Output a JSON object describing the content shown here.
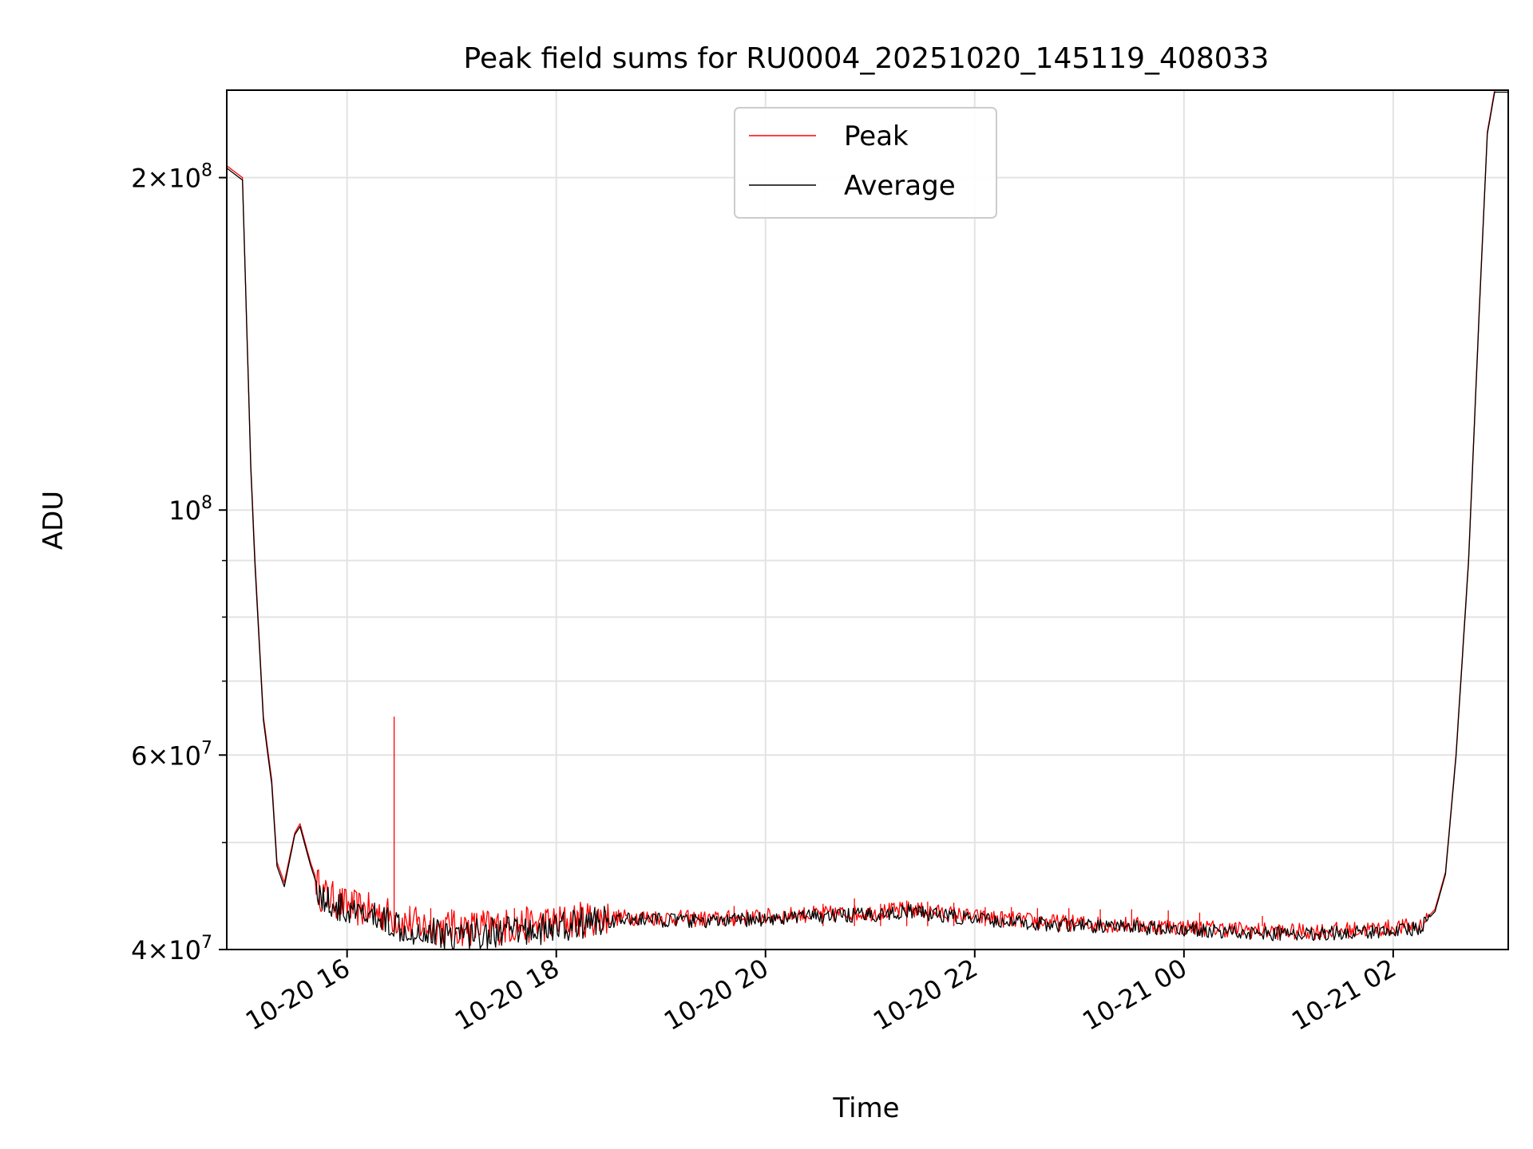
{
  "chart_data": {
    "type": "line",
    "title": "Peak field sums for RU0004_20251020_145119_408033",
    "xlabel": "Time",
    "ylabel": "ADU",
    "yscale": "log",
    "ylim": [
      40000000,
      240000000
    ],
    "xlim_hours": [
      14.85,
      27.1
    ],
    "grid": true,
    "legend_position": "top-center",
    "x_ticks": [
      {
        "hour": 16,
        "label": "10-20 16"
      },
      {
        "hour": 18,
        "label": "10-20 18"
      },
      {
        "hour": 20,
        "label": "10-20 20"
      },
      {
        "hour": 22,
        "label": "10-20 22"
      },
      {
        "hour": 24,
        "label": "10-21 00"
      },
      {
        "hour": 26,
        "label": "10-21 02"
      }
    ],
    "y_major_ticks": [
      {
        "value": 40000000,
        "base": "4",
        "exp": "7"
      },
      {
        "value": 60000000,
        "base": "6",
        "exp": "7"
      },
      {
        "value": 100000000,
        "base": "10",
        "exp": "8"
      },
      {
        "value": 200000000,
        "base": "2",
        "exp": "8"
      }
    ],
    "y_minor_ticks": [
      50000000,
      70000000,
      80000000,
      90000000
    ],
    "series": [
      {
        "name": "Peak",
        "color": "#ff0000",
        "points": [
          [
            14.85,
            205000000
          ],
          [
            15.0,
            200000000
          ],
          [
            15.03,
            160000000
          ],
          [
            15.08,
            110000000
          ],
          [
            15.12,
            90000000
          ],
          [
            15.2,
            65000000
          ],
          [
            15.28,
            57000000
          ],
          [
            15.33,
            48000000
          ],
          [
            15.4,
            46000000
          ],
          [
            15.5,
            51000000
          ],
          [
            15.55,
            52000000
          ],
          [
            15.65,
            48000000
          ],
          [
            15.75,
            45000000
          ],
          [
            16.0,
            43800000
          ],
          [
            16.4,
            43000000
          ],
          [
            16.6,
            42200000
          ],
          [
            17.0,
            41800000
          ],
          [
            17.5,
            42000000
          ],
          [
            18.0,
            42300000
          ],
          [
            18.3,
            42700000
          ],
          [
            18.8,
            42800000
          ],
          [
            19.5,
            42600000
          ],
          [
            20.3,
            43000000
          ],
          [
            21.0,
            43200000
          ],
          [
            21.4,
            43500000
          ],
          [
            22.0,
            42800000
          ],
          [
            22.8,
            42300000
          ],
          [
            23.5,
            42100000
          ],
          [
            24.3,
            41800000
          ],
          [
            25.0,
            41500000
          ],
          [
            25.7,
            41700000
          ],
          [
            26.25,
            42000000
          ],
          [
            26.4,
            43500000
          ],
          [
            26.5,
            47000000
          ],
          [
            26.6,
            60000000
          ],
          [
            26.72,
            90000000
          ],
          [
            26.82,
            150000000
          ],
          [
            26.9,
            220000000
          ],
          [
            26.97,
            240000000
          ],
          [
            27.1,
            240000000
          ]
        ],
        "spikes": [
          [
            16.45,
            65000000
          ],
          [
            16.6,
            43800000
          ],
          [
            16.8,
            43600000
          ],
          [
            17.0,
            43500000
          ],
          [
            17.3,
            43400000
          ],
          [
            17.6,
            43600000
          ],
          [
            17.9,
            43500000
          ],
          [
            18.2,
            43400000
          ],
          [
            19.7,
            43800000
          ],
          [
            20.55,
            44000000
          ],
          [
            20.85,
            44500000
          ],
          [
            21.1,
            44000000
          ],
          [
            21.35,
            44300000
          ],
          [
            21.55,
            44200000
          ],
          [
            21.8,
            44100000
          ],
          [
            22.1,
            43700000
          ],
          [
            22.35,
            43700000
          ],
          [
            22.6,
            43600000
          ],
          [
            22.9,
            43600000
          ],
          [
            23.2,
            43500000
          ],
          [
            23.5,
            43500000
          ],
          [
            23.85,
            43400000
          ],
          [
            24.15,
            43200000
          ],
          [
            24.75,
            42900000
          ],
          [
            25.45,
            42000000
          ]
        ]
      },
      {
        "name": "Average",
        "color": "#000000",
        "points": [
          [
            14.85,
            204000000
          ],
          [
            15.0,
            199000000
          ],
          [
            15.03,
            159000000
          ],
          [
            15.08,
            109000000
          ],
          [
            15.12,
            89000000
          ],
          [
            15.2,
            64500000
          ],
          [
            15.28,
            56500000
          ],
          [
            15.33,
            47600000
          ],
          [
            15.4,
            45600000
          ],
          [
            15.5,
            50800000
          ],
          [
            15.55,
            51700000
          ],
          [
            15.65,
            47700000
          ],
          [
            15.75,
            44600000
          ],
          [
            16.0,
            43200000
          ],
          [
            16.4,
            42500000
          ],
          [
            16.6,
            41700000
          ],
          [
            17.0,
            41300000
          ],
          [
            17.5,
            41500000
          ],
          [
            18.0,
            41800000
          ],
          [
            18.3,
            42400000
          ],
          [
            18.8,
            42600000
          ],
          [
            19.5,
            42400000
          ],
          [
            20.3,
            42800000
          ],
          [
            21.0,
            43000000
          ],
          [
            21.4,
            43300000
          ],
          [
            22.0,
            42600000
          ],
          [
            22.8,
            42100000
          ],
          [
            23.5,
            41900000
          ],
          [
            24.3,
            41600000
          ],
          [
            25.0,
            41300000
          ],
          [
            25.7,
            41500000
          ],
          [
            26.25,
            41800000
          ],
          [
            26.4,
            43300000
          ],
          [
            26.5,
            46800000
          ],
          [
            26.6,
            59700000
          ],
          [
            26.72,
            89500000
          ],
          [
            26.82,
            149000000
          ],
          [
            26.9,
            219000000
          ],
          [
            26.97,
            239000000
          ],
          [
            27.1,
            239000000
          ]
        ]
      }
    ]
  }
}
